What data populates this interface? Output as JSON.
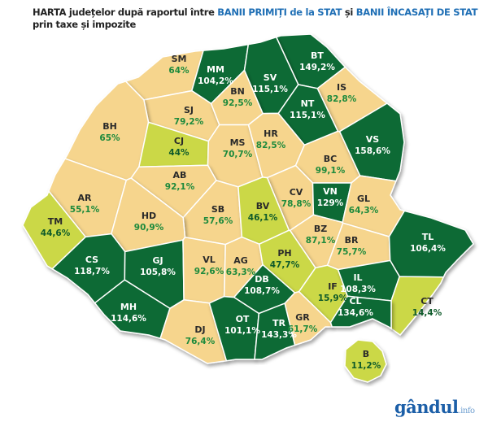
{
  "title": {
    "part1": "HARTA județelor după raportul între ",
    "part2": "BANII PRIMIȚI de la STAT",
    "part3": " și ",
    "part4": "BANII ÎNCASAȚI DE STAT",
    "line2": "prin taxe și impozite"
  },
  "colors": {
    "high": "#0e6b34",
    "low": "#f6d58d",
    "very_low": "#cbd846",
    "title_highlight": "#1f6fb5"
  },
  "counties": [
    {
      "code": "SM",
      "value": "64%",
      "category": "low"
    },
    {
      "code": "MM",
      "value": "104,2%",
      "category": "high"
    },
    {
      "code": "BT",
      "value": "149,2%",
      "category": "high"
    },
    {
      "code": "SV",
      "value": "115,1%",
      "category": "high"
    },
    {
      "code": "IS",
      "value": "82,8%",
      "category": "low"
    },
    {
      "code": "SJ",
      "value": "79,2%",
      "category": "low"
    },
    {
      "code": "BN",
      "value": "92,5%",
      "category": "low"
    },
    {
      "code": "NT",
      "value": "115,1%",
      "category": "high"
    },
    {
      "code": "BH",
      "value": "65%",
      "category": "low"
    },
    {
      "code": "CJ",
      "value": "44%",
      "category": "very_low"
    },
    {
      "code": "MS",
      "value": "70,7%",
      "category": "low"
    },
    {
      "code": "HR",
      "value": "82,5%",
      "category": "low"
    },
    {
      "code": "BC",
      "value": "99,1%",
      "category": "low"
    },
    {
      "code": "VS",
      "value": "158,6%",
      "category": "high"
    },
    {
      "code": "AR",
      "value": "55,1%",
      "category": "low"
    },
    {
      "code": "AB",
      "value": "92,1%",
      "category": "low"
    },
    {
      "code": "SB",
      "value": "57,6%",
      "category": "low"
    },
    {
      "code": "CV",
      "value": "78,8%",
      "category": "low"
    },
    {
      "code": "VN",
      "value": "129%",
      "category": "high"
    },
    {
      "code": "GL",
      "value": "64,3%",
      "category": "low"
    },
    {
      "code": "TM",
      "value": "44,6%",
      "category": "very_low"
    },
    {
      "code": "HD",
      "value": "90,9%",
      "category": "low"
    },
    {
      "code": "BV",
      "value": "46,1%",
      "category": "very_low"
    },
    {
      "code": "BZ",
      "value": "87,1%",
      "category": "low"
    },
    {
      "code": "BR",
      "value": "75,7%",
      "category": "low"
    },
    {
      "code": "TL",
      "value": "106,4%",
      "category": "high"
    },
    {
      "code": "CS",
      "value": "118,7%",
      "category": "high"
    },
    {
      "code": "GJ",
      "value": "105,8%",
      "category": "high"
    },
    {
      "code": "VL",
      "value": "92,6%",
      "category": "low"
    },
    {
      "code": "AG",
      "value": "63,3%",
      "category": "low"
    },
    {
      "code": "PH",
      "value": "47,7%",
      "category": "very_low"
    },
    {
      "code": "DB",
      "value": "108,7%",
      "category": "high"
    },
    {
      "code": "IF",
      "value": "15,9%",
      "category": "very_low"
    },
    {
      "code": "IL",
      "value": "108,3%",
      "category": "high"
    },
    {
      "code": "CT",
      "value": "14,4%",
      "category": "very_low"
    },
    {
      "code": "MH",
      "value": "114,6%",
      "category": "high"
    },
    {
      "code": "DJ",
      "value": "76,4%",
      "category": "low"
    },
    {
      "code": "OT",
      "value": "101,1%",
      "category": "high"
    },
    {
      "code": "TR",
      "value": "143,3%",
      "category": "high"
    },
    {
      "code": "GR",
      "value": "61,7%",
      "category": "low"
    },
    {
      "code": "CL",
      "value": "134,6%",
      "category": "high"
    },
    {
      "code": "B",
      "value": "11,2%",
      "category": "very_low"
    }
  ],
  "logo": {
    "main": "gândul",
    "suffix": ".info"
  }
}
